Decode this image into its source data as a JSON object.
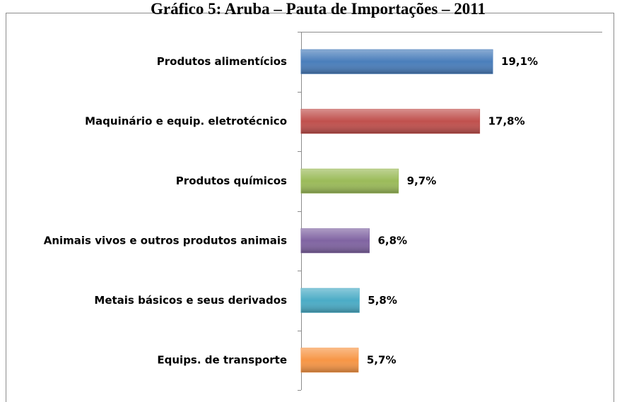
{
  "chart_data": {
    "type": "bar",
    "orientation": "horizontal",
    "title": "Gráfico 5: Aruba – Pauta de Importações – 2011",
    "categories": [
      "Produtos alimentícios",
      "Maquinário e equip. eletrotécnico",
      "Produtos químicos",
      "Animais vivos e outros produtos animais",
      "Metais básicos e seus derivados",
      "Equips. de transporte"
    ],
    "values": [
      19.1,
      17.8,
      9.7,
      6.8,
      5.8,
      5.7
    ],
    "value_labels": [
      "19,1%",
      "17,8%",
      "9,7%",
      "6,8%",
      "5,8%",
      "5,7%"
    ],
    "colors": [
      "#4a7ebb",
      "#c0504d",
      "#9bbb59",
      "#8064a2",
      "#4bacc6",
      "#f79646"
    ]
  }
}
